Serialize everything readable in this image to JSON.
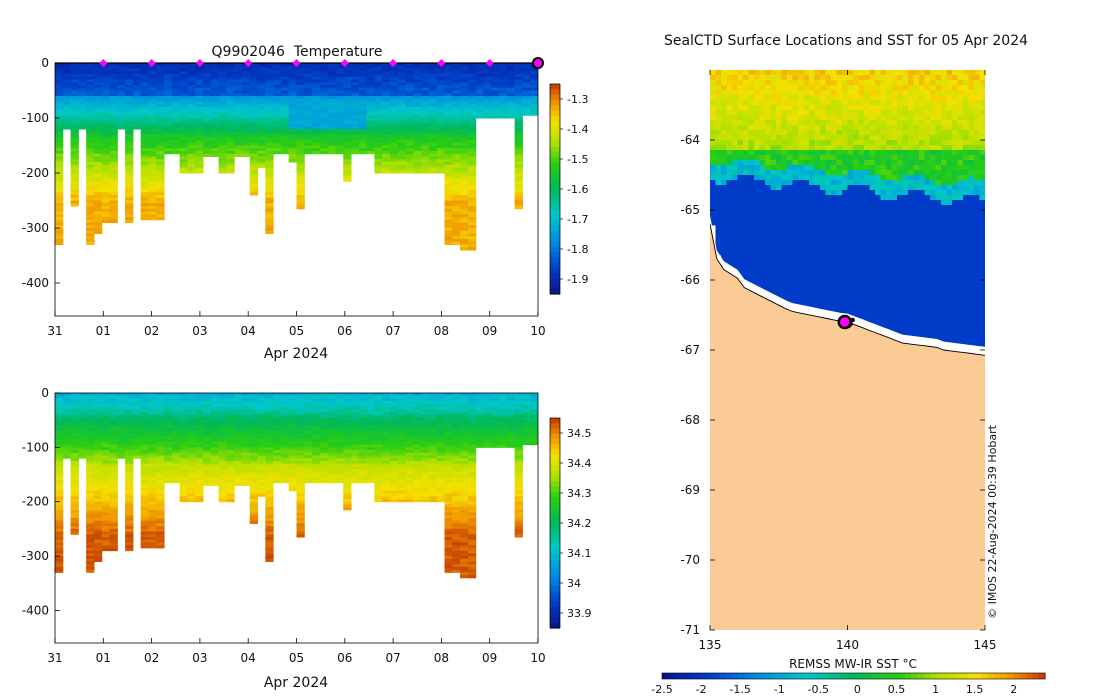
{
  "chart_data": [
    {
      "type": "heatmap",
      "title": "Q9902046  Temperature",
      "xlabel": "Apr 2024",
      "ylabel": "",
      "x_ticks": [
        "31",
        "01",
        "02",
        "03",
        "04",
        "05",
        "06",
        "07",
        "08",
        "09",
        "10"
      ],
      "y_ticks": [
        0,
        -100,
        -200,
        -300,
        -400
      ],
      "ylim": [
        -460,
        0
      ],
      "profile_count": 62,
      "surface_markers_days": [
        1,
        2,
        3,
        4,
        5,
        6,
        7,
        8,
        9,
        10
      ],
      "colorbar": {
        "ticks": [
          "-1.3",
          "-1.4",
          "-1.5",
          "-1.6",
          "-1.7",
          "-1.8",
          "-1.9"
        ],
        "range": [
          -1.95,
          -1.25
        ]
      },
      "profile_depths_m": [
        330,
        120,
        260,
        120,
        330,
        310,
        290,
        290,
        120,
        290,
        120,
        285,
        285,
        285,
        165,
        165,
        200,
        200,
        200,
        170,
        170,
        200,
        200,
        170,
        170,
        240,
        190,
        310,
        165,
        165,
        180,
        265,
        165,
        165,
        165,
        165,
        165,
        215,
        165,
        165,
        165,
        200,
        200,
        200,
        200,
        200,
        200,
        200,
        200,
        200,
        330,
        330,
        340,
        340,
        100,
        100,
        100,
        100,
        100,
        265,
        95,
        95
      ]
    },
    {
      "type": "heatmap",
      "title": "",
      "xlabel": "Apr 2024",
      "ylabel": "",
      "x_ticks": [
        "31",
        "01",
        "02",
        "03",
        "04",
        "05",
        "06",
        "07",
        "08",
        "09",
        "10"
      ],
      "y_ticks": [
        0,
        -100,
        -200,
        -300,
        -400
      ],
      "ylim": [
        -460,
        0
      ],
      "colorbar": {
        "ticks": [
          "34.5",
          "34.4",
          "34.3",
          "34.2",
          "34.1",
          "34",
          "33.9"
        ],
        "range": [
          33.85,
          34.55
        ]
      }
    },
    {
      "type": "heatmap",
      "title": "SealCTD Surface Locations and SST for 05 Apr 2024",
      "xlabel": "",
      "ylabel": "",
      "x_ticks": [
        "135",
        "140",
        "145"
      ],
      "y_ticks": [
        "-64",
        "-65",
        "-66",
        "-67",
        "-68",
        "-69",
        "-70",
        "-71"
      ],
      "xlim": [
        135,
        145
      ],
      "ylim": [
        -71,
        -63
      ],
      "seal_location": {
        "lon": 139.9,
        "lat": -66.6
      },
      "colorbar": {
        "label": "REMSS MW-IR SST °C",
        "ticks": [
          "-2.5",
          "-2",
          "-1.5",
          "-1",
          "-0.5",
          "0",
          "0.5",
          "1",
          "1.5",
          "2"
        ],
        "range": [
          -2.5,
          2.4
        ]
      },
      "credit": "© IMOS 22-Aug-2024 00:39 Hobart"
    }
  ]
}
